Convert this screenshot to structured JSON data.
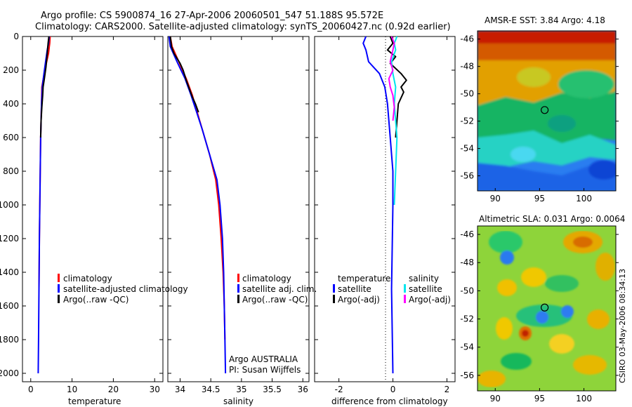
{
  "header": {
    "line1": "Argo profile: CS 5900874_16 27-Apr-2006 20060501_547 51.188S 95.572E",
    "line2": "Climatology: CARS2000. Satellite-adjusted climatology: synTS_20060427.nc (0.92d earlier)"
  },
  "colors": {
    "climatology": "#ff0000",
    "satellite": "#0000ff",
    "argo": "#000000",
    "satellite_alt": "#00e5ee",
    "argo_alt": "#ff00ff"
  },
  "chart_data": [
    {
      "type": "line",
      "id": "temperature",
      "xlabel": "temperature",
      "xlim": [
        -2,
        32
      ],
      "ylim": [
        0,
        2050
      ],
      "xticks": [
        0,
        10,
        20,
        30
      ],
      "yticks": [
        0,
        200,
        400,
        600,
        800,
        1000,
        1200,
        1400,
        1600,
        1800,
        2000
      ],
      "legend": [
        "climatology",
        "satellite-adjusted climatology",
        "Argo(..raw -QC)"
      ],
      "series": [
        {
          "name": "climatology",
          "color": "#ff0000",
          "x": [
            4.7,
            4.6,
            4.5,
            4.3,
            3.4,
            2.7,
            2.6,
            2.4,
            2.3,
            2.2,
            2.1,
            2.0
          ],
          "y": [
            0,
            40,
            60,
            100,
            200,
            300,
            400,
            600,
            800,
            1000,
            1200,
            1500
          ]
        },
        {
          "name": "satellite-adjusted climatology",
          "color": "#0000ff",
          "x": [
            4.5,
            4.3,
            4.0,
            3.6,
            3.2,
            2.8,
            2.6,
            2.4,
            2.3,
            2.2,
            2.1,
            2.0,
            1.9,
            1.8
          ],
          "y": [
            0,
            40,
            80,
            150,
            220,
            300,
            400,
            600,
            800,
            1000,
            1200,
            1500,
            1800,
            2000
          ]
        },
        {
          "name": "Argo(..raw -QC)",
          "color": "#000000",
          "x": [
            4.4,
            4.2,
            4.0,
            3.7,
            3.3,
            3.0,
            2.9,
            2.7,
            2.5,
            2.4
          ],
          "y": [
            0,
            40,
            100,
            180,
            250,
            300,
            350,
            420,
            500,
            600
          ]
        }
      ]
    },
    {
      "type": "line",
      "id": "salinity",
      "xlabel": "salinity",
      "xlim": [
        33.8,
        36.1
      ],
      "ylim": [
        0,
        2050
      ],
      "xticks": [
        34,
        34.5,
        35,
        35.5,
        36
      ],
      "legend": [
        "climatology",
        "satellite adj. clim.",
        "Argo(..raw -QC)"
      ],
      "annotation": [
        "Argo AUSTRALIA",
        "PI: Susan Wijffels"
      ],
      "series": [
        {
          "name": "climatology",
          "color": "#ff0000",
          "x": [
            33.84,
            33.87,
            33.98,
            34.1,
            34.2,
            34.28,
            34.36,
            34.48,
            34.58,
            34.63,
            34.67,
            34.7,
            34.72,
            34.73
          ],
          "y": [
            0,
            60,
            150,
            250,
            350,
            450,
            550,
            700,
            850,
            1000,
            1200,
            1400,
            1600,
            1800
          ]
        },
        {
          "name": "satellite adj. clim.",
          "color": "#0000ff",
          "x": [
            33.82,
            33.84,
            33.95,
            34.08,
            34.18,
            34.27,
            34.36,
            34.48,
            34.6,
            34.65,
            34.69,
            34.71,
            34.72,
            34.73,
            34.74
          ],
          "y": [
            0,
            60,
            150,
            250,
            350,
            450,
            550,
            700,
            850,
            1000,
            1200,
            1400,
            1600,
            1800,
            2000
          ]
        },
        {
          "name": "Argo(..raw -QC)",
          "color": "#000000",
          "x": [
            33.84,
            33.86,
            33.9,
            34.0,
            34.05,
            34.1,
            34.14,
            34.2,
            34.25,
            34.3
          ],
          "y": [
            0,
            60,
            100,
            160,
            200,
            260,
            300,
            360,
            400,
            450
          ]
        }
      ]
    },
    {
      "type": "line",
      "id": "difference",
      "xlabel": "difference from climatology",
      "xlim": [
        -2.9,
        2.3
      ],
      "ylim": [
        0,
        2050
      ],
      "xticks": [
        -2,
        0,
        2
      ],
      "legend_left": [
        "temperature",
        "satellite",
        "Argo(-adj)"
      ],
      "legend_right": [
        "salinity",
        "satellite",
        "Argo(-adj)"
      ],
      "series": [
        {
          "name": "temperature satellite",
          "color": "#0000ff",
          "x": [
            -1.0,
            -1.1,
            -1.0,
            -0.9,
            -0.5,
            -0.3,
            -0.2,
            -0.1,
            0.0,
            0.0,
            -0.05,
            0.0
          ],
          "y": [
            0,
            40,
            80,
            150,
            220,
            300,
            400,
            600,
            800,
            1000,
            1500,
            2000
          ]
        },
        {
          "name": "temperature Argo(-adj)",
          "color": "#000000",
          "x": [
            -0.1,
            0.0,
            -0.2,
            0.1,
            -0.1,
            0.3,
            0.5,
            0.3,
            0.4,
            0.2,
            0.1
          ],
          "y": [
            0,
            40,
            80,
            120,
            160,
            220,
            260,
            300,
            330,
            400,
            600
          ]
        },
        {
          "name": "salinity satellite",
          "color": "#00e5ee",
          "x": [
            0.15,
            0.05,
            0.1,
            -0.05,
            0.0,
            0.1,
            0.05,
            0.15,
            0.1,
            0.05
          ],
          "y": [
            0,
            40,
            80,
            150,
            220,
            300,
            400,
            600,
            800,
            1000
          ]
        },
        {
          "name": "salinity Argo(-adj)",
          "color": "#ff00ff",
          "x": [
            -0.05,
            0.05,
            0.0,
            -0.1,
            0.0,
            -0.15,
            -0.1,
            0.0,
            0.05,
            0.0
          ],
          "y": [
            0,
            40,
            80,
            150,
            200,
            250,
            300,
            350,
            420,
            500
          ]
        }
      ]
    },
    {
      "type": "heatmap",
      "id": "sst_map",
      "title": "AMSR-E SST: 3.84 Argo: 4.18",
      "xlim": [
        88,
        103.6
      ],
      "ylim": [
        -57.1,
        -45.4
      ],
      "xticks": [
        90,
        95,
        100
      ],
      "yticks": [
        -46,
        -48,
        -50,
        -52,
        -54,
        -56
      ],
      "marker": {
        "lon": 95.572,
        "lat": -51.188
      }
    },
    {
      "type": "heatmap",
      "id": "sla_map",
      "title": "Altimetric SLA: 0.031 Argo: 0.0064",
      "xlim": [
        88,
        103.6
      ],
      "ylim": [
        -57.1,
        -45.4
      ],
      "xticks": [
        90,
        95,
        100
      ],
      "yticks": [
        -46,
        -48,
        -50,
        -52,
        -54,
        -56
      ],
      "marker": {
        "lon": 95.572,
        "lat": -51.188
      }
    }
  ],
  "stamp": "CSIRO 03-May-2006 08:34:13"
}
